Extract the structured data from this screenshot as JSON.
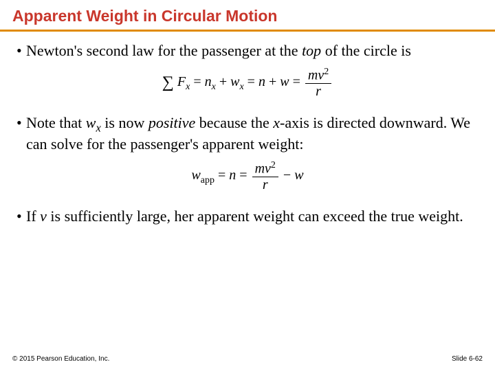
{
  "title": "Apparent Weight in Circular Motion",
  "title_color": "#c9372c",
  "rule_color": "#e08a00",
  "bullets": {
    "b1_pre": "Newton's second law for the passenger at the ",
    "b1_em": "top",
    "b1_post": " of the circle is",
    "b2_pre": "Note that ",
    "b2_var": "w",
    "b2_sub": "x",
    "b2_mid": " is now ",
    "b2_em": "positive",
    "b2_post1": " because the ",
    "b2_xvar": "x",
    "b2_post2": "-axis is directed downward. We can solve for the passenger's apparent weight:",
    "b3_pre": "If ",
    "b3_var": "v",
    "b3_post": " is sufficiently large, her apparent weight can exceed the true weight."
  },
  "footer": {
    "copyright": "© 2015 Pearson Education, Inc.",
    "slide": "Slide 6-62"
  },
  "equations": {
    "eq1": {
      "sumFx": "F",
      "sumFx_sub": "x",
      "nx": "n",
      "nx_sub": "x",
      "wx": "w",
      "wx_sub": "x",
      "n": "n",
      "w": "w",
      "frac_num_pre": "m",
      "frac_num_var": "v",
      "frac_num_sup": "2",
      "frac_den": "r"
    },
    "eq2": {
      "wapp": "w",
      "wapp_sub": "app",
      "n": "n",
      "frac_num_pre": "m",
      "frac_num_var": "v",
      "frac_num_sup": "2",
      "frac_den": "r",
      "minus_w": "w"
    }
  }
}
